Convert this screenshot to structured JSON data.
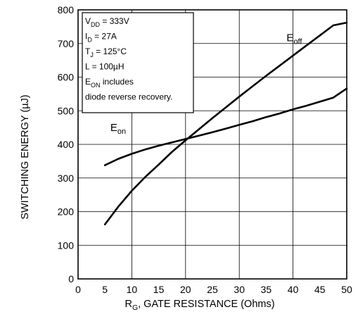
{
  "chart_data": {
    "type": "line",
    "xlabel_main": "R",
    "xlabel_sub": "G",
    "xlabel_rest": ", GATE RESISTANCE (Ohms)",
    "ylabel": "SWITCHING ENERGY (µJ)",
    "xlim": [
      0,
      50
    ],
    "ylim": [
      0,
      800
    ],
    "grid": true,
    "x_ticks": [
      "0",
      "5",
      "10",
      "15",
      "20",
      "25",
      "30",
      "35",
      "40",
      "45",
      "50"
    ],
    "y_ticks": [
      "0",
      "100",
      "200",
      "300",
      "400",
      "500",
      "600",
      "700",
      "800"
    ],
    "conditions": [
      {
        "main": "V",
        "sub": "DD",
        "rest": " = 333V"
      },
      {
        "main": "I",
        "sub": "D",
        "rest": " = 27A"
      },
      {
        "main": "T",
        "sub": "J",
        "rest": " = 125°C"
      },
      {
        "main": "L = 100µH",
        "sub": "",
        "rest": ""
      },
      {
        "main": "E",
        "sub": "ON",
        "rest": "  includes"
      },
      {
        "main": "diode  reverse  recovery.",
        "sub": "",
        "rest": ""
      }
    ],
    "series": [
      {
        "name_main": "E",
        "name_sub": "off",
        "x": [
          5,
          7.5,
          10,
          12.5,
          15,
          17.5,
          20,
          22.5,
          25,
          27.5,
          30,
          32.5,
          35,
          37.5,
          40,
          42.5,
          45,
          47.5,
          50
        ],
        "y": [
          162,
          215,
          262,
          303,
          340,
          378,
          412,
          445,
          478,
          510,
          542,
          573,
          604,
          634,
          664,
          694,
          724,
          754,
          762
        ]
      },
      {
        "name_main": "E",
        "name_sub": "on",
        "x": [
          5,
          7.5,
          10,
          12.5,
          15,
          17.5,
          20,
          22.5,
          25,
          27.5,
          30,
          32.5,
          35,
          37.5,
          40,
          42.5,
          45,
          47.5,
          50
        ],
        "y": [
          338,
          357,
          372,
          385,
          396,
          406,
          416,
          426,
          436,
          447,
          458,
          469,
          481,
          492,
          504,
          515,
          527,
          539,
          566
        ]
      }
    ]
  }
}
